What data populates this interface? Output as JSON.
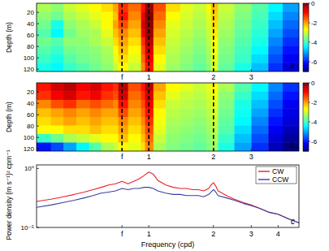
{
  "chart_data": [
    {
      "type": "heatmap",
      "panel_label": "a",
      "ylabel": "Depth (m)",
      "log": "x",
      "xlim": [
        0.3,
        5
      ],
      "ylim": [
        124,
        4
      ],
      "xticks": [
        {
          "value": 0.75,
          "label": "f"
        },
        1,
        2,
        3
      ],
      "yticks": [
        20,
        40,
        60,
        80,
        100,
        120
      ],
      "dashed_lines": [
        0.75,
        1,
        2
      ],
      "x_edges": [
        0.3,
        0.35,
        0.4,
        0.46,
        0.53,
        0.6,
        0.68,
        0.72,
        0.8,
        0.92,
        0.96,
        1.05,
        1.2,
        1.4,
        1.6,
        1.85,
        1.95,
        2.1,
        2.5,
        3.0,
        3.6,
        4.2,
        5.0
      ],
      "y_edges": [
        4,
        19,
        34,
        49,
        64,
        79,
        94,
        109,
        124
      ],
      "cells": [
        [
          -3.2,
          -3.4,
          -3.0,
          -2.8,
          -2.6,
          -2.4,
          -2.0,
          -1.2,
          -1.6,
          -1.0,
          -0.2,
          -1.4,
          -2.4,
          -2.8,
          -3.0,
          -2.6,
          -2.2,
          -3.0,
          -3.4,
          -3.8,
          -4.4,
          -5.0
        ],
        [
          -3.4,
          -3.6,
          -3.2,
          -3.0,
          -2.8,
          -2.6,
          -2.2,
          -1.0,
          -1.8,
          -0.8,
          0,
          -1.6,
          -2.6,
          -2.9,
          -3.1,
          -2.8,
          -2.3,
          -3.1,
          -3.5,
          -3.9,
          -4.6,
          -5.2
        ],
        [
          -3.6,
          -4.2,
          -3.4,
          -3.2,
          -3.0,
          -2.6,
          -2.0,
          -1.4,
          -2.0,
          -0.6,
          -0.1,
          -1.8,
          -2.8,
          -3.0,
          -3.2,
          -2.9,
          -2.4,
          -3.2,
          -3.6,
          -4.0,
          -4.8,
          -5.4
        ],
        [
          -3.8,
          -4.4,
          -3.6,
          -3.3,
          -3.2,
          -2.8,
          -2.2,
          -1.8,
          -2.2,
          -0.8,
          -0.2,
          -2.0,
          -2.9,
          -3.1,
          -3.3,
          -3.0,
          -2.5,
          -3.3,
          -3.7,
          -4.1,
          -5.0,
          -5.6
        ],
        [
          -3.6,
          -3.8,
          -3.4,
          -3.4,
          -3.2,
          -3.0,
          -2.4,
          -2.0,
          -2.4,
          -1.2,
          -0.4,
          -2.2,
          -3.0,
          -3.2,
          -3.4,
          -3.1,
          -2.6,
          -3.4,
          -3.8,
          -4.2,
          -5.2,
          -5.8
        ],
        [
          -3.8,
          -4.0,
          -3.6,
          -3.5,
          -3.4,
          -3.2,
          -2.6,
          -2.2,
          -2.6,
          -1.4,
          -0.6,
          -2.4,
          -3.1,
          -3.3,
          -3.5,
          -3.2,
          -2.7,
          -3.5,
          -3.9,
          -4.4,
          -5.4,
          -6.0
        ],
        [
          -4.0,
          -4.2,
          -3.8,
          -3.6,
          -3.5,
          -3.3,
          -2.8,
          -2.4,
          -2.8,
          -1.6,
          -0.8,
          -2.6,
          -3.2,
          -3.4,
          -3.6,
          -3.3,
          -2.8,
          -3.6,
          -4.0,
          -4.6,
          -5.6,
          -6.2
        ],
        [
          -4.2,
          -4.4,
          -4.0,
          -3.8,
          -3.6,
          -3.4,
          -3.0,
          -2.6,
          -3.0,
          -1.8,
          -1.0,
          -2.8,
          -3.3,
          -3.5,
          -3.7,
          -3.4,
          -2.9,
          -3.7,
          -4.2,
          -4.8,
          -5.8,
          -6.4
        ]
      ],
      "colorbar": {
        "range": [
          -7,
          0
        ],
        "ticks": [
          0,
          -2,
          -4,
          -6
        ]
      }
    },
    {
      "type": "heatmap",
      "panel_label": "b",
      "ylabel": "Depth (m)",
      "log": "x",
      "xlim": [
        0.3,
        5
      ],
      "ylim": [
        124,
        4
      ],
      "xticks": [
        {
          "value": 0.75,
          "label": "f"
        },
        1,
        2,
        3
      ],
      "yticks": [
        20,
        40,
        60,
        80,
        100,
        120
      ],
      "dashed_lines": [
        0.75,
        1,
        2
      ],
      "x_edges": [
        0.3,
        0.35,
        0.4,
        0.46,
        0.53,
        0.6,
        0.68,
        0.72,
        0.8,
        0.92,
        0.96,
        1.05,
        1.2,
        1.4,
        1.6,
        1.85,
        1.95,
        2.1,
        2.5,
        3.0,
        3.6,
        4.2,
        5.0
      ],
      "y_edges": [
        4,
        19,
        34,
        49,
        64,
        79,
        94,
        109,
        124
      ],
      "cells": [
        [
          -1.0,
          -0.6,
          -0.4,
          -0.8,
          -0.6,
          -1.0,
          -1.2,
          -0.4,
          -1.4,
          -1.0,
          -0.4,
          -2.0,
          -2.6,
          -2.8,
          -3.0,
          -2.8,
          -2.6,
          -3.2,
          -3.8,
          -4.4,
          -5.2,
          -5.8
        ],
        [
          -1.2,
          -0.8,
          -0.6,
          -1.0,
          -0.8,
          -1.2,
          -1.4,
          -0.6,
          -1.6,
          -1.2,
          -0.6,
          -2.2,
          -2.8,
          -3.0,
          -3.1,
          -2.9,
          -2.7,
          -3.4,
          -4.0,
          -4.6,
          -5.4,
          -6.0
        ],
        [
          -1.8,
          -1.4,
          -1.2,
          -1.6,
          -1.4,
          -1.6,
          -1.8,
          -1.0,
          -1.8,
          -1.4,
          -0.8,
          -2.4,
          -3.0,
          -3.1,
          -3.2,
          -3.0,
          -2.8,
          -3.5,
          -4.2,
          -4.8,
          -5.6,
          -6.2
        ],
        [
          -2.2,
          -2.0,
          -1.8,
          -2.0,
          -1.8,
          -2.0,
          -2.0,
          -1.4,
          -2.0,
          -1.6,
          -1.0,
          -2.6,
          -3.1,
          -3.2,
          -3.3,
          -3.1,
          -2.9,
          -3.6,
          -4.3,
          -5.0,
          -5.8,
          -6.3
        ],
        [
          -2.4,
          -2.2,
          -2.0,
          -2.2,
          -2.0,
          -2.2,
          -2.2,
          -1.8,
          -2.2,
          -1.8,
          -1.2,
          -2.7,
          -3.2,
          -3.3,
          -3.4,
          -3.2,
          -3.0,
          -3.7,
          -4.4,
          -5.2,
          -6.0,
          -6.4
        ],
        [
          -2.6,
          -2.6,
          -2.4,
          -2.4,
          -2.2,
          -2.4,
          -2.4,
          -2.0,
          -2.4,
          -2.0,
          -1.4,
          -2.8,
          -3.3,
          -3.4,
          -3.5,
          -3.3,
          -3.1,
          -3.8,
          -4.6,
          -5.4,
          -6.2,
          -6.6
        ],
        [
          -4.0,
          -3.6,
          -3.2,
          -3.0,
          -2.8,
          -2.6,
          -2.6,
          -2.2,
          -2.6,
          -2.2,
          -1.6,
          -3.0,
          -3.4,
          -3.5,
          -3.6,
          -3.4,
          -3.2,
          -4.0,
          -4.8,
          -5.6,
          -6.4,
          -6.8
        ],
        [
          -6.0,
          -5.6,
          -5.0,
          -4.4,
          -3.8,
          -3.2,
          -3.0,
          -2.6,
          -2.8,
          -2.4,
          -1.8,
          -3.2,
          -3.5,
          -3.6,
          -3.7,
          -3.5,
          -3.3,
          -4.2,
          -5.0,
          -5.8,
          -6.6,
          -7.0
        ]
      ],
      "colorbar": {
        "range": [
          -7,
          0
        ],
        "ticks": [
          0,
          -2,
          -4,
          -6
        ]
      }
    },
    {
      "type": "line",
      "panel_label": "c",
      "xlabel": "Frequency (cpd)",
      "ylabel": "Power density (m s⁻¹)² cpm⁻¹",
      "log": true,
      "legend": "upper right",
      "xlim": [
        0.3,
        5
      ],
      "ylim": [
        1e-05,
        2
      ],
      "xticks": [
        {
          "value": 0.75,
          "label": "f"
        },
        1,
        2,
        3,
        4
      ],
      "yticks": [
        {
          "value": 1,
          "label": "10⁰"
        },
        {
          "value": 1e-05,
          "label": "10⁻⁵"
        }
      ],
      "x": [
        0.3,
        0.35,
        0.4,
        0.45,
        0.5,
        0.55,
        0.6,
        0.65,
        0.7,
        0.75,
        0.8,
        0.85,
        0.9,
        0.95,
        1.0,
        1.05,
        1.1,
        1.2,
        1.3,
        1.4,
        1.5,
        1.6,
        1.7,
        1.8,
        1.9,
        1.95,
        2.0,
        2.05,
        2.1,
        2.3,
        2.5,
        2.75,
        3.0,
        3.3,
        3.6,
        4.0,
        4.5,
        5.0
      ],
      "series": [
        {
          "name": "CW",
          "color": "#e8202a",
          "values": [
            0.0016,
            0.0025,
            0.004,
            0.0063,
            0.01,
            0.016,
            0.025,
            0.04,
            0.05,
            0.08,
            0.05,
            0.08,
            0.13,
            0.25,
            0.5,
            0.32,
            0.1,
            0.04,
            0.025,
            0.02,
            0.02,
            0.016,
            0.016,
            0.0125,
            0.02,
            0.04,
            0.063,
            0.032,
            0.0125,
            0.005,
            0.0025,
            0.0013,
            0.0008,
            0.0004,
            0.0002,
            0.00013,
            5e-05,
            2.5e-05
          ]
        },
        {
          "name": "CCW",
          "color": "#3a3fa0",
          "values": [
            0.0005,
            0.0008,
            0.0013,
            0.002,
            0.0032,
            0.005,
            0.008,
            0.01,
            0.0125,
            0.02,
            0.016,
            0.02,
            0.02,
            0.025,
            0.025,
            0.02,
            0.0125,
            0.008,
            0.0063,
            0.0063,
            0.005,
            0.005,
            0.005,
            0.004,
            0.0063,
            0.01,
            0.016,
            0.01,
            0.005,
            0.0032,
            0.002,
            0.0011,
            0.0007,
            0.0004,
            0.0002,
            0.00013,
            5e-05,
            2.5e-05
          ]
        }
      ]
    }
  ]
}
